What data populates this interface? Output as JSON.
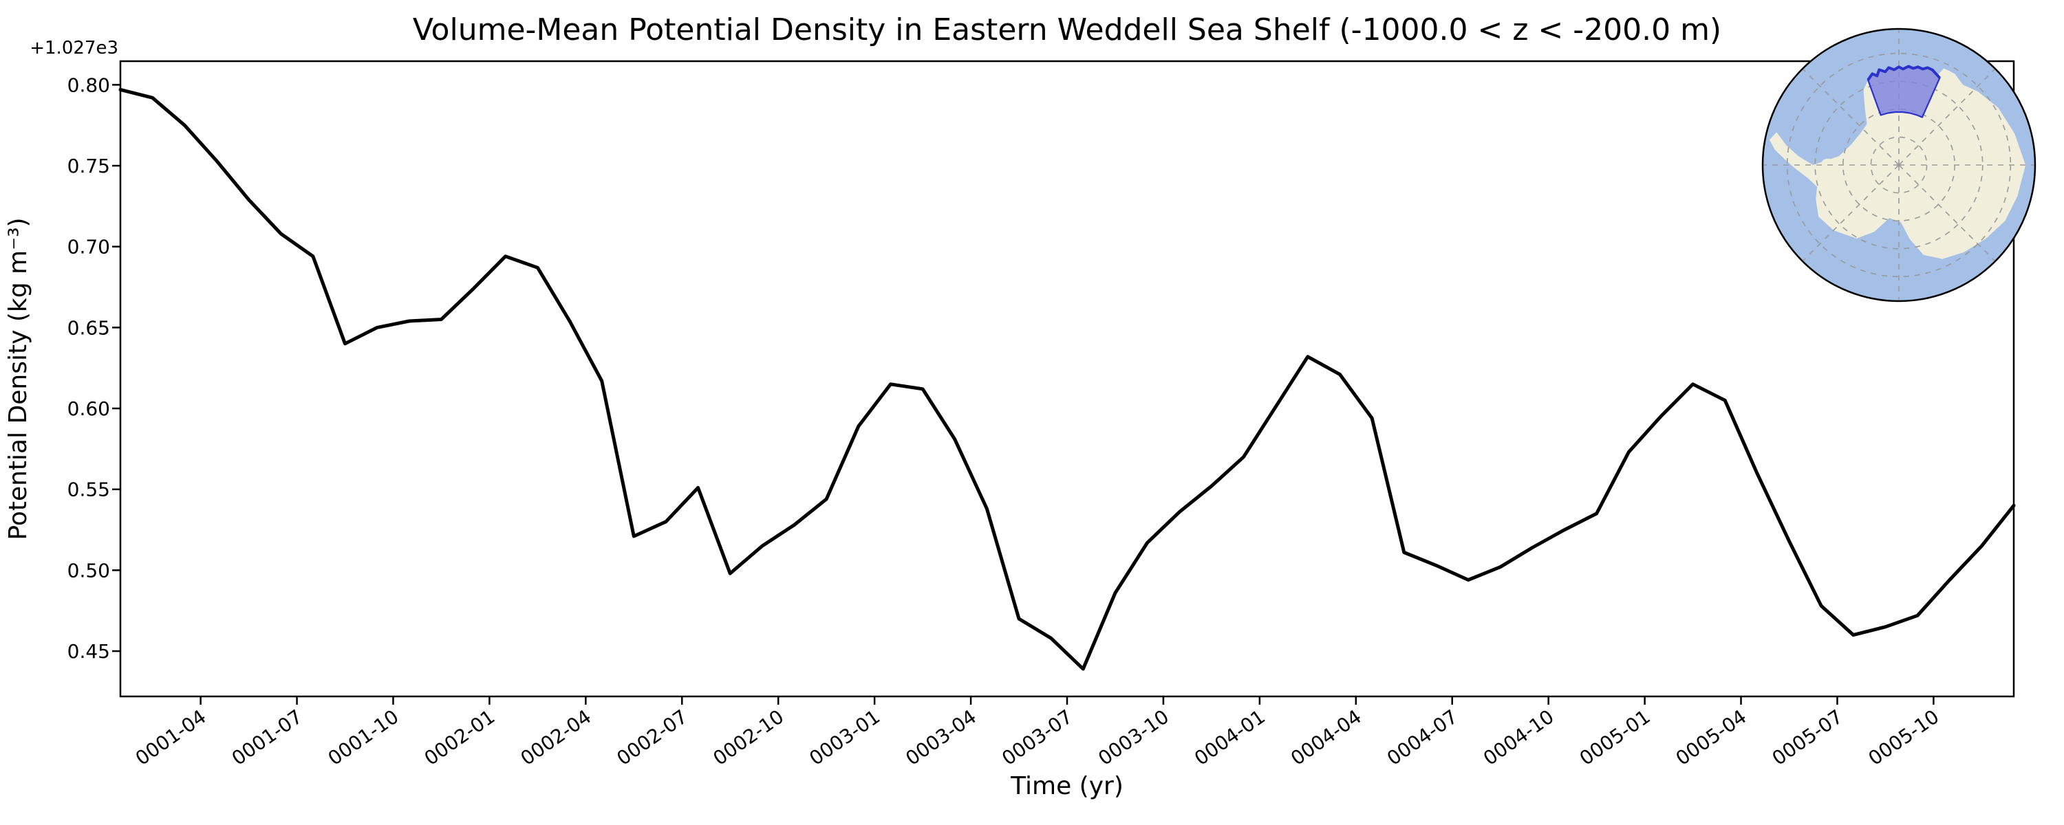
{
  "figure": {
    "background": "#ffffff"
  },
  "chart_data": {
    "type": "line",
    "title": "Volume-Mean Potential Density in Eastern Weddell Sea Shelf (-1000.0 < z < -200.0 m)",
    "xlabel": "Time (yr)",
    "ylabel": "Potential Density (kg m⁻³)",
    "y_offset_label": "+1.027e3",
    "grid": false,
    "legend_position": "none",
    "ylim": [
      0.422,
      0.8146
    ],
    "y_ticks": [
      0.45,
      0.5,
      0.55,
      0.6,
      0.65,
      0.7,
      0.75,
      0.8
    ],
    "x_tick_labels": [
      "0001-04",
      "0001-07",
      "0001-10",
      "0002-01",
      "0002-04",
      "0002-07",
      "0002-10",
      "0003-01",
      "0003-04",
      "0003-07",
      "0003-10",
      "0004-01",
      "0004-04",
      "0004-07",
      "0004-10",
      "0005-01",
      "0005-04",
      "0005-07",
      "0005-10"
    ],
    "x_tick_rotation_deg": -35,
    "series": [
      {
        "name": "volume-mean-potential-density",
        "color": "#000000",
        "line_width": 5,
        "months": [
          "0001-01",
          "0001-02",
          "0001-03",
          "0001-04",
          "0001-05",
          "0001-06",
          "0001-07",
          "0001-08",
          "0001-09",
          "0001-10",
          "0001-11",
          "0001-12",
          "0002-01",
          "0002-02",
          "0002-03",
          "0002-04",
          "0002-05",
          "0002-06",
          "0002-07",
          "0002-08",
          "0002-09",
          "0002-10",
          "0002-11",
          "0002-12",
          "0003-01",
          "0003-02",
          "0003-03",
          "0003-04",
          "0003-05",
          "0003-06",
          "0003-07",
          "0003-08",
          "0003-09",
          "0003-10",
          "0003-11",
          "0003-12",
          "0004-01",
          "0004-02",
          "0004-03",
          "0004-04",
          "0004-05",
          "0004-06",
          "0004-07",
          "0004-08",
          "0004-09",
          "0004-10",
          "0004-11",
          "0004-12",
          "0005-01",
          "0005-02",
          "0005-03",
          "0005-04",
          "0005-05",
          "0005-06",
          "0005-07",
          "0005-08",
          "0005-09",
          "0005-10",
          "0005-11",
          "0005-12"
        ],
        "values": [
          0.797,
          0.792,
          0.775,
          0.753,
          0.729,
          0.708,
          0.694,
          0.64,
          0.65,
          0.654,
          0.655,
          0.674,
          0.694,
          0.687,
          0.654,
          0.617,
          0.521,
          0.53,
          0.551,
          0.498,
          0.515,
          0.528,
          0.544,
          0.589,
          0.615,
          0.612,
          0.581,
          0.538,
          0.47,
          0.458,
          0.439,
          0.486,
          0.517,
          0.536,
          0.552,
          0.57,
          0.601,
          0.632,
          0.621,
          0.594,
          0.511,
          0.503,
          0.494,
          0.502,
          0.514,
          0.525,
          0.535,
          0.573,
          0.595,
          0.615,
          0.605,
          0.56,
          0.518,
          0.478,
          0.46,
          0.465,
          0.472,
          0.494,
          0.515,
          0.54
        ]
      }
    ]
  },
  "inset_map": {
    "name": "antarctica-south-polar-inset",
    "highlighted_region": "Eastern Weddell Sea Shelf",
    "ocean_color": "#a5c0e6",
    "land_color": "#f1eedb",
    "region_fill": "#8186df",
    "region_border": "#2b32cc",
    "graticule_color": "#9a9a9a",
    "rim_color": "#000000"
  }
}
